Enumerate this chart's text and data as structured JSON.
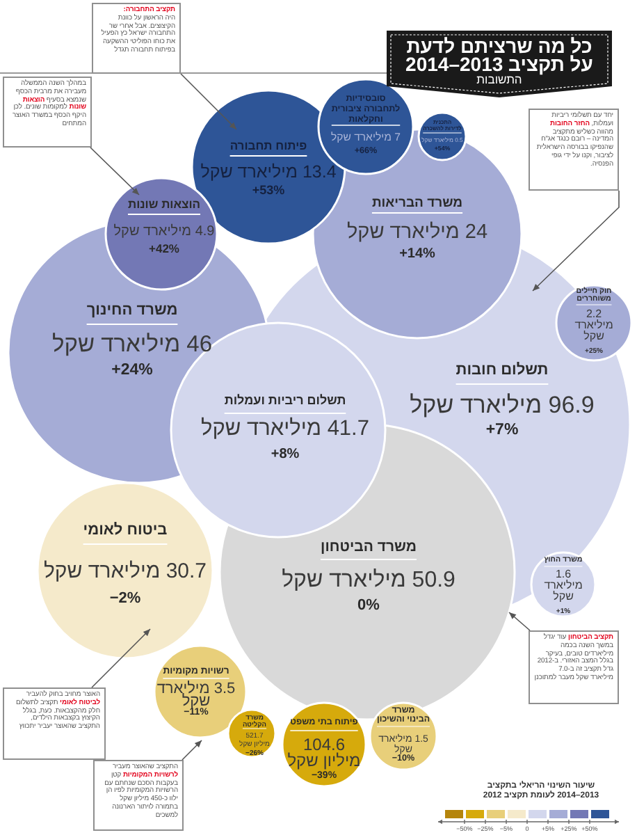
{
  "chart_data": [
    {
      "type": "other",
      "title": "כל מה שרציתם לדעת על תקציב 2013–2014",
      "subtitle": "התשובות",
      "categories": [
        "תשלום חובות",
        "משרד החינוך",
        "משרד הבריאות",
        "משרד הביטחון",
        "תשלום ריביות ועמלות",
        "פיתוח תחבורה",
        "סובסידיות לתחבורה ציבורית וחקלאות",
        "התכנית לדירות להשכרה",
        "הוצאות שונות",
        "חוק חיילים משוחררים",
        "משרד החוץ",
        "ביטוח לאומי",
        "רשויות מקומיות",
        "משרד הקליטה",
        "פיתוח בתי משפט",
        "משרד הבינוי והשיכון"
      ],
      "series": [
        {
          "values": [
            96.9,
            46,
            24,
            50.9,
            41.7,
            13.4,
            7,
            0.5,
            4.9,
            2.2,
            1.6,
            30.7,
            3.5,
            521.7,
            104.6,
            1.5
          ],
          "value_labels": [
            "96.9 מיליארד שקל",
            "46 מיליארד שקל",
            "24 מיליארד שקל",
            "50.9 מיליארד שקל",
            "41.7 מיליארד שקל",
            "13.4 מיליארד שקל",
            "7 מיליארד שקל",
            "0.5 מיליארד שקל",
            "4.9 מיליארד שקל",
            "2.2 מיליארד שקל",
            "1.6 מיליארד שקל",
            "30.7 מיליארד שקל",
            "3.5 מיליארד שקל",
            "521.7 מיליון שקל",
            "104.6 מיליון שקל",
            "1.5 מיליארד שקל"
          ],
          "colors": [
            "#d3d7ed",
            "#a5acd6",
            "#a5acd6",
            "#d9d9d9",
            "#d3d7ed",
            "#2e5597",
            "#2e5597",
            "#2e5597",
            "#7378b5",
            "#a5acd6",
            "#d3d7ed",
            "#f5eacb",
            "#e8cf7a",
            "#d6aa0c",
            "#d6aa0c",
            "#e8cf7a"
          ]
        },
        {
          "values": [
            7,
            24,
            14,
            0,
            8,
            53,
            66,
            54,
            42,
            25,
            1,
            -2,
            -11,
            -26,
            -39,
            -10
          ],
          "value_labels": [
            "+7%",
            "+24%",
            "+14%",
            "0%",
            "+8%",
            "+53%",
            "+66%",
            "+54%",
            "+42%",
            "+25%",
            "+1%",
            "−2%",
            "−11%",
            "−26%",
            "−39%",
            "−10%"
          ]
        }
      ],
      "annotations": [
        "תקציב התחבורה: היה הראשון על כוונת הקיצוצים. אבל אחרי שר התחבורה ישראל כץ הפעיל את כוחו הפוליטי ההשקעה בפיתוח תחבורה תגדל",
        "במהלך השנה הממשלה מעבירה את מרבית הכסף שנמצא בסעיף הוצאות שונות למקומות שונים. לכן היקף הכסף במשרד האוצר המתחים",
        "יחד עם תשלומי ריביות ועמלות, החזר החובות מהווה כשליש מתקציב המדינה – רובם כנגד אג\"ח שהנפיקו בבורסה הישראלית לציבור, וקנו על ידי גופי הפנסיה.",
        "תקציב הביטחון עוד יגדל במשך השנה בכמה מיליארדים טובים, בעיקר בגלל המצב האזורי. ב-2012 גדל תקציב זה ב-7.0 מיליארד שקל מעבר למתוכנן",
        "האוצר מחויב בחוק להעביר לביטוח לאומי תקציב לתשלום חלק מהקצבאות. כעת, בגלל הקיצוץ בקצבאות הילדים, התקציב שהאוצר יעביר יתכווץ",
        "התקציב שהאוצר מעביר לרשויות המקומיות קטן בעקבות הסכם שנחתם עם הרשויות המקומיות לפיו הן ילוו כ-450 מיליון שקל בתמורה לויתור הארנונה למשכים"
      ]
    },
    {
      "type": "other",
      "title": "שיעור השינוי הריאלי בתקציב 2013–2014 לעומת תקציב 2012",
      "categories": [
        null,
        null,
        null,
        null,
        null,
        null,
        null,
        null
      ],
      "colors": [
        "#b5850c",
        "#d6aa0c",
        "#e8cf7a",
        "#f5eacb",
        "#d3d7ed",
        "#a5acd6",
        "#7378b5",
        "#2e5597"
      ],
      "annotations": [
        "−50%",
        "−25%",
        "−5%",
        "0",
        "+5%",
        "+25%",
        "+50%"
      ]
    }
  ]
}
